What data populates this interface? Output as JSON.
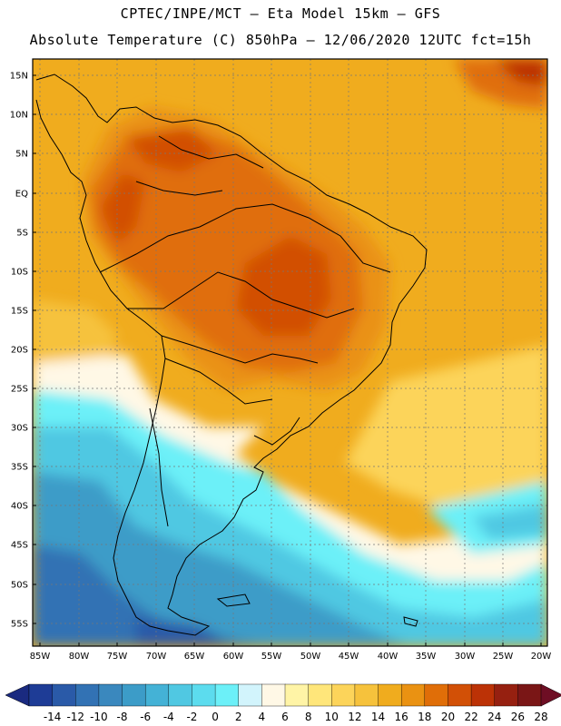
{
  "header": {
    "line1": "CPTEC/INPE/MCT –  Eta Model 15km – GFS",
    "line2": "Absolute Temperature (C) 850hPa – 12/06/2020 12UTC fct=15h"
  },
  "map": {
    "lat_labels": [
      "15N",
      "10N",
      "5N",
      "EQ",
      "5S",
      "10S",
      "15S",
      "20S",
      "25S",
      "30S",
      "35S",
      "40S",
      "45S",
      "50S",
      "55S"
    ],
    "lon_labels": [
      "85W",
      "80W",
      "75W",
      "70W",
      "65W",
      "60W",
      "55W",
      "50W",
      "45W",
      "40W",
      "35W",
      "30W",
      "25W",
      "20W"
    ],
    "lon_range": [
      -86,
      -19
    ],
    "lat_range": [
      16,
      -58
    ]
  },
  "colorbar": {
    "labels": [
      "-14",
      "-12",
      "-10",
      "-8",
      "-6",
      "-4",
      "-2",
      "0",
      "2",
      "4",
      "6",
      "8",
      "10",
      "12",
      "14",
      "16",
      "18",
      "20",
      "22",
      "24",
      "26",
      "28"
    ],
    "colors": [
      "#1e3c96",
      "#2a5aa8",
      "#3272b4",
      "#3a88be",
      "#3c9cc8",
      "#44b2d6",
      "#50c8e2",
      "#5cdcee",
      "#6cf0f8",
      "#d2f4fc",
      "#fff8e6",
      "#fff4a6",
      "#ffe67a",
      "#fcd45a",
      "#f6c23c",
      "#f0ac1e",
      "#ea9212",
      "#e06e08",
      "#d25006",
      "#bc3206",
      "#962010",
      "#7a1616"
    ],
    "left_triangle": "#1a2a80",
    "right_triangle": "#6e0e24"
  }
}
